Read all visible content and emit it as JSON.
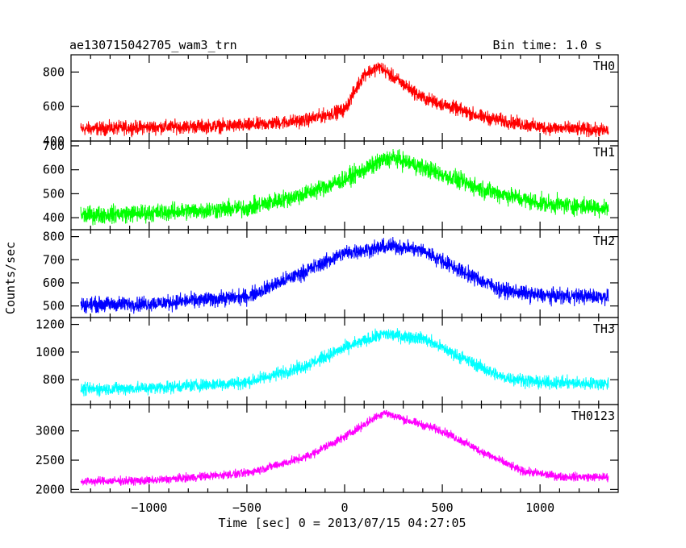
{
  "header": {
    "title": "ae130715042705_wam3_trn",
    "bin_time": "Bin time: 1.0 s"
  },
  "chart_data": {
    "type": "line",
    "xlabel": "Time [sec] 0 = 2013/07/15 04:27:05",
    "ylabel": "Counts/sec",
    "xlim": [
      -1400,
      1400
    ],
    "x_ticks": [
      -1000,
      -500,
      0,
      500,
      1000
    ],
    "x_tick_labels": [
      "−1000",
      "−500",
      "0",
      "500",
      "1000"
    ],
    "panels": [
      {
        "name": "TH0",
        "color": "#ff0000",
        "ylim": [
          400,
          900
        ],
        "y_ticks": [
          400,
          600,
          800
        ],
        "x": [
          -1350,
          -1000,
          -500,
          -200,
          0,
          100,
          180,
          250,
          400,
          700,
          1000,
          1350
        ],
        "y": [
          470,
          480,
          490,
          520,
          580,
          790,
          830,
          770,
          650,
          540,
          480,
          460
        ],
        "noise": 30
      },
      {
        "name": "TH1",
        "color": "#00ff00",
        "ylim": [
          350,
          720
        ],
        "y_ticks": [
          400,
          500,
          600,
          700
        ],
        "x": [
          -1350,
          -1000,
          -500,
          -200,
          0,
          200,
          250,
          400,
          700,
          1000,
          1350
        ],
        "y": [
          410,
          420,
          440,
          500,
          560,
          640,
          650,
          610,
          520,
          460,
          440
        ],
        "noise": 28
      },
      {
        "name": "TH2",
        "color": "#0000ff",
        "ylim": [
          450,
          830
        ],
        "y_ticks": [
          500,
          600,
          700,
          800
        ],
        "x": [
          -1350,
          -1000,
          -500,
          -200,
          0,
          250,
          400,
          600,
          800,
          1000,
          1350
        ],
        "y": [
          505,
          510,
          540,
          650,
          730,
          760,
          740,
          650,
          570,
          545,
          540
        ],
        "noise": 25
      },
      {
        "name": "TH3",
        "color": "#00ffff",
        "ylim": [
          620,
          1250
        ],
        "y_ticks": [
          800,
          1000,
          1200
        ],
        "x": [
          -1350,
          -1000,
          -500,
          -200,
          0,
          200,
          400,
          600,
          800,
          1000,
          1350
        ],
        "y": [
          730,
          740,
          780,
          900,
          1030,
          1130,
          1100,
          960,
          820,
          780,
          770
        ],
        "noise": 35
      },
      {
        "name": "TH0123",
        "color": "#ff00ff",
        "ylim": [
          1950,
          3450
        ],
        "y_ticks": [
          2000,
          2500,
          3000
        ],
        "x": [
          -1350,
          -1000,
          -500,
          -200,
          0,
          200,
          300,
          500,
          700,
          900,
          1100,
          1350
        ],
        "y": [
          2140,
          2150,
          2280,
          2550,
          2900,
          3320,
          3200,
          3000,
          2650,
          2320,
          2220,
          2210
        ],
        "noise": 55
      }
    ]
  }
}
